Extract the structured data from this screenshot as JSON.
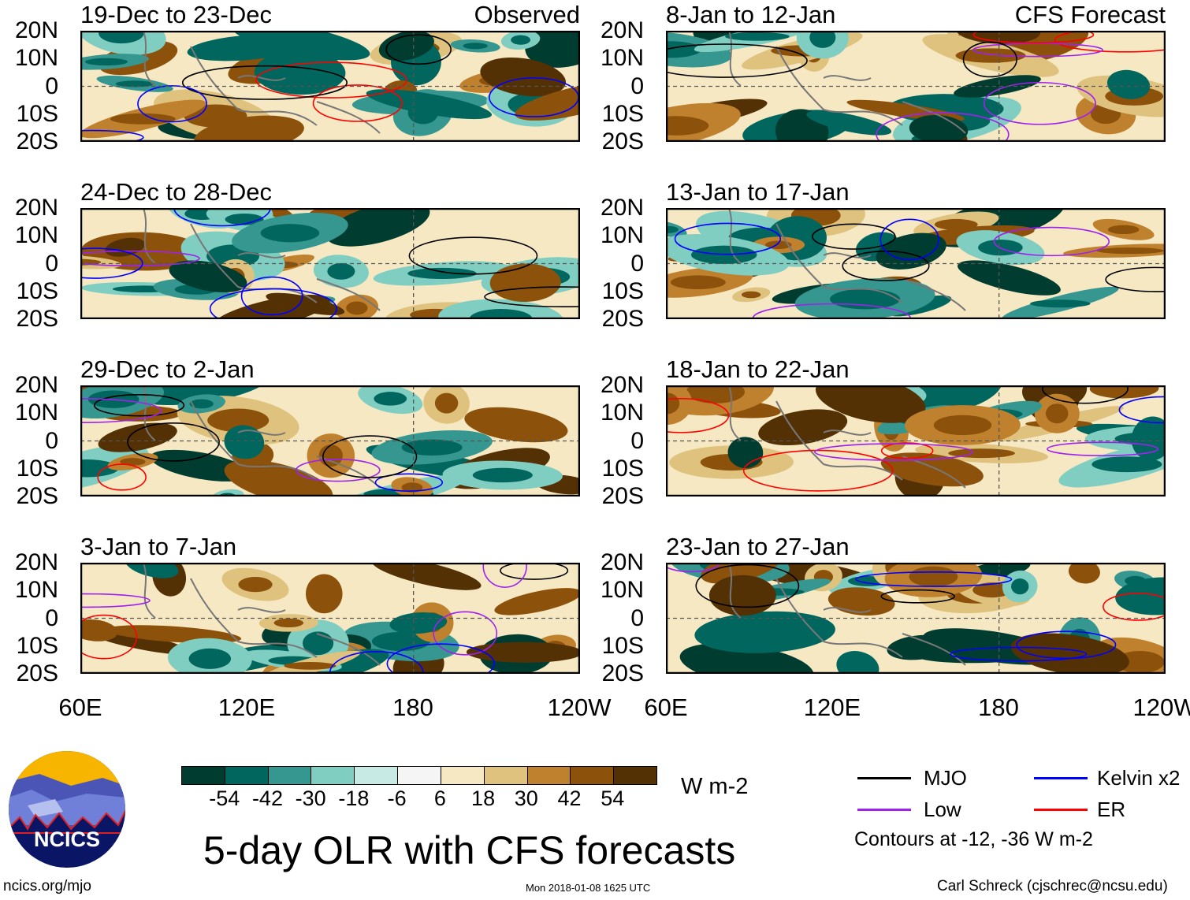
{
  "labels": {
    "observed": "Observed",
    "forecast": "CFS Forecast"
  },
  "panels": {
    "observed": [
      "19-Dec to 23-Dec",
      "24-Dec to 28-Dec",
      "29-Dec to 2-Jan",
      "3-Jan to 7-Jan"
    ],
    "forecast": [
      "8-Jan to 12-Jan",
      "13-Jan to 17-Jan",
      "18-Jan to 22-Jan",
      "23-Jan to 27-Jan"
    ]
  },
  "lat_ticks": [
    "20N",
    "10N",
    "0",
    "10S",
    "20S"
  ],
  "lon_ticks": [
    "60E",
    "120E",
    "180",
    "120W"
  ],
  "colorbar": {
    "ticks": [
      "-54",
      "-42",
      "-30",
      "-18",
      "-6",
      "6",
      "18",
      "30",
      "42",
      "54"
    ],
    "colors": [
      "#003c30",
      "#01665e",
      "#35978f",
      "#80cdc1",
      "#c7eae5",
      "#f5f5f5",
      "#f6e8c3",
      "#dfc27d",
      "#bf812d",
      "#8c510a",
      "#543005"
    ],
    "units": "W m-2"
  },
  "legend": {
    "items": [
      {
        "label": "MJO",
        "color": "#000000"
      },
      {
        "label": "Kelvin x2",
        "color": "#0000ff"
      },
      {
        "label": "Low",
        "color": "#a020f0"
      },
      {
        "label": "ER",
        "color": "#ff0000"
      }
    ],
    "note": "Contours at -12, -36 W m-2"
  },
  "logo": {
    "text": "NCICS"
  },
  "title": "5-day OLR with CFS forecasts",
  "footer": {
    "left": "ncics.org/mjo",
    "center": "Mon 2018-01-08 1625 UTC",
    "right": "Carl Schreck (cjschrec@ncsu.edu)"
  }
}
